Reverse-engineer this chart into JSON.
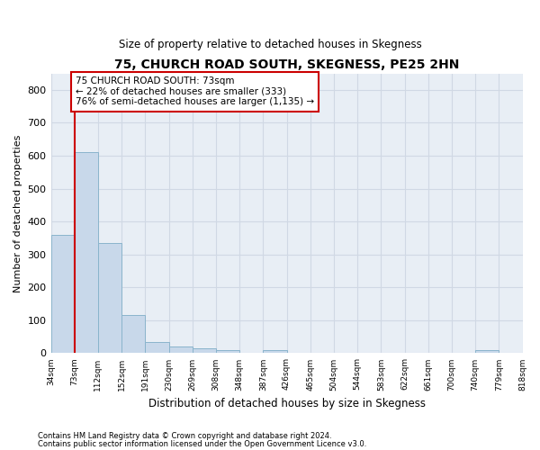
{
  "title1": "75, CHURCH ROAD SOUTH, SKEGNESS, PE25 2HN",
  "title2": "Size of property relative to detached houses in Skegness",
  "xlabel": "Distribution of detached houses by size in Skegness",
  "ylabel": "Number of detached properties",
  "bin_labels": [
    "34sqm",
    "73sqm",
    "112sqm",
    "152sqm",
    "191sqm",
    "230sqm",
    "269sqm",
    "308sqm",
    "348sqm",
    "387sqm",
    "426sqm",
    "465sqm",
    "504sqm",
    "544sqm",
    "583sqm",
    "622sqm",
    "661sqm",
    "700sqm",
    "740sqm",
    "779sqm",
    "818sqm"
  ],
  "bar_heights": [
    360,
    610,
    335,
    115,
    35,
    20,
    15,
    10,
    0,
    10,
    0,
    0,
    0,
    0,
    0,
    0,
    0,
    0,
    10,
    0
  ],
  "bar_color": "#c8d8ea",
  "bar_edge_color": "#8ab4cc",
  "property_line_color": "#cc0000",
  "annotation_text": "75 CHURCH ROAD SOUTH: 73sqm\n← 22% of detached houses are smaller (333)\n76% of semi-detached houses are larger (1,135) →",
  "annotation_box_color": "white",
  "annotation_box_edge_color": "#cc0000",
  "ylim": [
    0,
    850
  ],
  "yticks": [
    0,
    100,
    200,
    300,
    400,
    500,
    600,
    700,
    800
  ],
  "background_color": "#e8eef5",
  "grid_color": "#d0d8e4",
  "footnote1": "Contains HM Land Registry data © Crown copyright and database right 2024.",
  "footnote2": "Contains public sector information licensed under the Open Government Licence v3.0."
}
